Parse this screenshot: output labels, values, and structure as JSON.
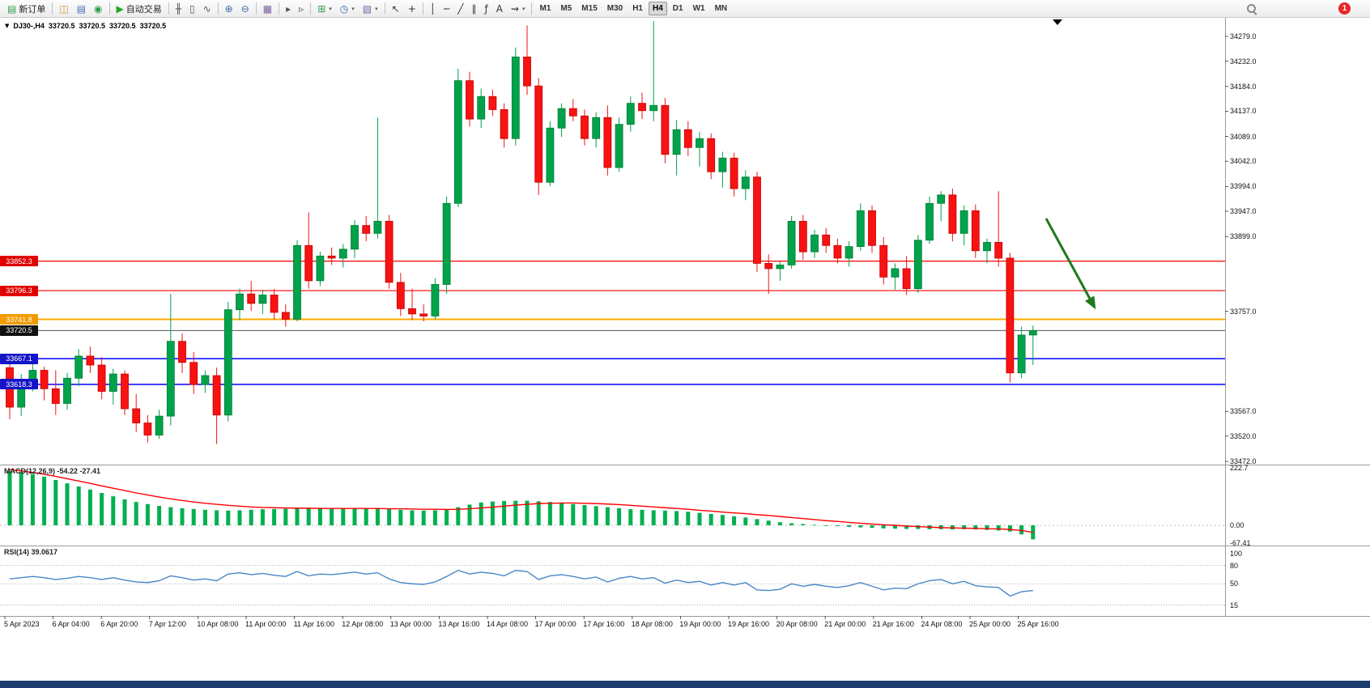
{
  "icons": {
    "caret": "▾",
    "symbol_caret": "▼"
  },
  "toolbar": {
    "groups": [
      {
        "items": [
          {
            "type": "labeled",
            "name": "new-order-button",
            "icon": "new-order-icon",
            "glyph": "▤",
            "color": "#2e9e4f",
            "label": "新订单"
          }
        ]
      },
      {
        "items": [
          {
            "type": "icon",
            "name": "market-watch-icon",
            "glyph": "◫",
            "color": "#c8932b"
          },
          {
            "type": "icon",
            "name": "data-window-icon",
            "glyph": "▤",
            "color": "#4a6fb5"
          },
          {
            "type": "icon",
            "name": "navigator-icon",
            "glyph": "◉",
            "color": "#2e9e4f"
          }
        ]
      },
      {
        "items": [
          {
            "type": "labeled",
            "name": "autotrade-button",
            "icon": "autotrade-play-icon",
            "glyph": "▶",
            "color": "#22aa22",
            "label": "自动交易"
          }
        ]
      },
      {
        "items": [
          {
            "type": "icon",
            "name": "bar-chart-icon",
            "glyph": "╫",
            "color": "#555555"
          },
          {
            "type": "icon",
            "name": "candlestick-chart-icon",
            "glyph": "▯",
            "color": "#555555"
          },
          {
            "type": "icon",
            "name": "line-chart-icon",
            "glyph": "∿",
            "color": "#555555"
          }
        ]
      },
      {
        "items": [
          {
            "type": "icon",
            "name": "zoom-in-icon",
            "glyph": "⊕",
            "color": "#3b6ea5"
          },
          {
            "type": "icon",
            "name": "zoom-out-icon",
            "glyph": "⊖",
            "color": "#3b6ea5"
          }
        ]
      },
      {
        "items": [
          {
            "type": "icon",
            "name": "tile-windows-icon",
            "glyph": "▦",
            "color": "#7a5fa0"
          }
        ]
      },
      {
        "items": [
          {
            "type": "icon",
            "name": "auto-scroll-icon",
            "glyph": "▸",
            "color": "#555555"
          },
          {
            "type": "icon",
            "name": "chart-shift-icon",
            "glyph": "▹",
            "color": "#555555"
          }
        ]
      },
      {
        "items": [
          {
            "type": "dropdown",
            "name": "indicators-menu",
            "glyph": "⊞",
            "color": "#2e9e4f"
          },
          {
            "type": "dropdown",
            "name": "periods-menu",
            "glyph": "◷",
            "color": "#3b6ea5"
          },
          {
            "type": "dropdown",
            "name": "templates-menu",
            "glyph": "▧",
            "color": "#7a5fa0"
          }
        ]
      },
      {
        "items": [
          {
            "type": "icon",
            "name": "cursor-icon",
            "glyph": "↖",
            "color": "#333333"
          },
          {
            "type": "icon",
            "name": "crosshair-icon",
            "glyph": "+",
            "color": "#333333"
          }
        ]
      },
      {
        "items": [
          {
            "type": "icon",
            "name": "vertical-line-icon",
            "glyph": "│",
            "color": "#333333"
          },
          {
            "type": "icon",
            "name": "horizontal-line-icon",
            "glyph": "─",
            "color": "#333333"
          },
          {
            "type": "icon",
            "name": "trendline-icon",
            "glyph": "╱",
            "color": "#333333"
          },
          {
            "type": "icon",
            "name": "equidistant-channel-icon",
            "glyph": "∥",
            "color": "#333333"
          },
          {
            "type": "icon",
            "name": "fibonacci-icon",
            "glyph": "ƒ",
            "color": "#333333"
          },
          {
            "type": "icon",
            "name": "text-tool-icon",
            "glyph": "A",
            "color": "#333333"
          },
          {
            "type": "dropdown",
            "name": "arrows-menu",
            "glyph": "⇝",
            "color": "#333333"
          }
        ]
      }
    ],
    "timeframes": {
      "items": [
        "M1",
        "M5",
        "M15",
        "M30",
        "H1",
        "H4",
        "D1",
        "W1",
        "MN"
      ],
      "active": "H4"
    },
    "notification_count": "1"
  },
  "chart": {
    "symbol_info": {
      "symbol": "DJ30-,H4",
      "open": "33720.5",
      "high": "33720.5",
      "low": "33720.5",
      "close": "33720.5"
    },
    "current_price": 33720.5,
    "price_axis_labels": [
      "34279.0",
      "34232.0",
      "34184.0",
      "34137.0",
      "34089.0",
      "34042.0",
      "33994.0",
      "33947.0",
      "33899.0",
      "33757.0",
      "33567.0",
      "33520.0",
      "33472.0"
    ],
    "price_badges": [
      {
        "value": "33852.3",
        "price": 33852.3,
        "color": "#e00000"
      },
      {
        "value": "33796.3",
        "price": 33796.3,
        "color": "#e00000"
      },
      {
        "value": "33741.8",
        "price": 33741.8,
        "color": "#f29b00"
      },
      {
        "value": "33720.5",
        "price": 33720.5,
        "color": "#111111"
      },
      {
        "value": "33667.1",
        "price": 33667.1,
        "color": "#1414c8"
      },
      {
        "value": "33618.3",
        "price": 33618.3,
        "color": "#1414c8"
      }
    ],
    "hlines": [
      {
        "price": 33852.3,
        "color": "#ff0000",
        "w": 1.2
      },
      {
        "price": 33796.3,
        "color": "#ff0000",
        "w": 1.2
      },
      {
        "price": 33741.8,
        "color": "#ffaa00",
        "w": 2
      },
      {
        "price": 33667.1,
        "color": "#0000ff",
        "w": 1.5
      },
      {
        "price": 33618.3,
        "color": "#0000ff",
        "w": 1.5
      }
    ],
    "time_axis": [
      "5 Apr 2023",
      "6 Apr 04:00",
      "6 Apr 20:00",
      "7 Apr 12:00",
      "10 Apr 08:00",
      "11 Apr 00:00",
      "11 Apr 16:00",
      "12 Apr 08:00",
      "13 Apr 00:00",
      "13 Apr 16:00",
      "14 Apr 08:00",
      "17 Apr 00:00",
      "17 Apr 16:00",
      "18 Apr 08:00",
      "19 Apr 00:00",
      "19 Apr 16:00",
      "20 Apr 08:00",
      "21 Apr 00:00",
      "21 Apr 16:00",
      "24 Apr 08:00",
      "25 Apr 00:00",
      "25 Apr 16:00"
    ]
  },
  "chart_data": {
    "type": "candlestick",
    "symbol": "DJ30-",
    "timeframe": "H4",
    "up_color": "#00a24a",
    "down_color": "#f81212",
    "up_border": "#007a36",
    "down_border": "#c40000",
    "price_range": [
      33472.0,
      34279.0
    ],
    "candles": [
      [
        33650,
        33665,
        33552,
        33575
      ],
      [
        33575,
        33638,
        33558,
        33625
      ],
      [
        33625,
        33658,
        33605,
        33645
      ],
      [
        33645,
        33652,
        33588,
        33610
      ],
      [
        33610,
        33645,
        33560,
        33582
      ],
      [
        33582,
        33640,
        33570,
        33630
      ],
      [
        33630,
        33685,
        33615,
        33672
      ],
      [
        33672,
        33690,
        33640,
        33655
      ],
      [
        33655,
        33670,
        33590,
        33605
      ],
      [
        33605,
        33648,
        33580,
        33638
      ],
      [
        33638,
        33645,
        33560,
        33572
      ],
      [
        33572,
        33600,
        33528,
        33545
      ],
      [
        33545,
        33560,
        33508,
        33522
      ],
      [
        33522,
        33570,
        33515,
        33558
      ],
      [
        33558,
        33790,
        33540,
        33700
      ],
      [
        33700,
        33715,
        33640,
        33660
      ],
      [
        33660,
        33680,
        33600,
        33618
      ],
      [
        33618,
        33645,
        33602,
        33635
      ],
      [
        33635,
        33650,
        33505,
        33560
      ],
      [
        33560,
        33775,
        33548,
        33760
      ],
      [
        33760,
        33800,
        33740,
        33790
      ],
      [
        33790,
        33815,
        33758,
        33772
      ],
      [
        33772,
        33798,
        33752,
        33788
      ],
      [
        33788,
        33800,
        33742,
        33755
      ],
      [
        33755,
        33770,
        33728,
        33742
      ],
      [
        33742,
        33892,
        33738,
        33882
      ],
      [
        33882,
        33945,
        33800,
        33815
      ],
      [
        33815,
        33870,
        33805,
        33862
      ],
      [
        33862,
        33878,
        33845,
        33858
      ],
      [
        33858,
        33885,
        33840,
        33875
      ],
      [
        33875,
        33930,
        33858,
        33920
      ],
      [
        33920,
        33938,
        33890,
        33905
      ],
      [
        33905,
        34125,
        33895,
        33928
      ],
      [
        33928,
        33940,
        33800,
        33812
      ],
      [
        33812,
        33830,
        33748,
        33762
      ],
      [
        33762,
        33800,
        33740,
        33752
      ],
      [
        33752,
        33770,
        33738,
        33748
      ],
      [
        33748,
        33820,
        33742,
        33808
      ],
      [
        33808,
        33975,
        33790,
        33962
      ],
      [
        33962,
        34218,
        33955,
        34195
      ],
      [
        34195,
        34212,
        34108,
        34122
      ],
      [
        34122,
        34180,
        34105,
        34165
      ],
      [
        34165,
        34178,
        34128,
        34140
      ],
      [
        34140,
        34152,
        34068,
        34085
      ],
      [
        34085,
        34258,
        34072,
        34240
      ],
      [
        34240,
        34300,
        34168,
        34185
      ],
      [
        34185,
        34200,
        33978,
        34002
      ],
      [
        34002,
        34118,
        33995,
        34105
      ],
      [
        34105,
        34152,
        34088,
        34142
      ],
      [
        34142,
        34160,
        34118,
        34128
      ],
      [
        34128,
        34140,
        34072,
        34085
      ],
      [
        34085,
        34135,
        34068,
        34125
      ],
      [
        34125,
        34148,
        34015,
        34030
      ],
      [
        34030,
        34125,
        34022,
        34112
      ],
      [
        34112,
        34165,
        34098,
        34152
      ],
      [
        34152,
        34172,
        34122,
        34138
      ],
      [
        34138,
        34308,
        34118,
        34148
      ],
      [
        34148,
        34162,
        34038,
        34055
      ],
      [
        34055,
        34120,
        34015,
        34102
      ],
      [
        34102,
        34118,
        34052,
        34068
      ],
      [
        34068,
        34098,
        34032,
        34085
      ],
      [
        34085,
        34095,
        34008,
        34022
      ],
      [
        34022,
        34060,
        33992,
        34048
      ],
      [
        34048,
        34058,
        33975,
        33990
      ],
      [
        33990,
        34025,
        33968,
        34012
      ],
      [
        34012,
        34022,
        33832,
        33848
      ],
      [
        33848,
        33865,
        33790,
        33838
      ],
      [
        33838,
        33852,
        33815,
        33845
      ],
      [
        33845,
        33938,
        33838,
        33928
      ],
      [
        33928,
        33940,
        33855,
        33870
      ],
      [
        33870,
        33912,
        33858,
        33902
      ],
      [
        33902,
        33915,
        33868,
        33882
      ],
      [
        33882,
        33895,
        33848,
        33858
      ],
      [
        33858,
        33890,
        33842,
        33880
      ],
      [
        33880,
        33962,
        33872,
        33948
      ],
      [
        33948,
        33958,
        33868,
        33882
      ],
      [
        33882,
        33898,
        33808,
        33822
      ],
      [
        33822,
        33848,
        33798,
        33838
      ],
      [
        33838,
        33862,
        33788,
        33800
      ],
      [
        33800,
        33902,
        33792,
        33892
      ],
      [
        33892,
        33975,
        33885,
        33962
      ],
      [
        33962,
        33985,
        33928,
        33978
      ],
      [
        33978,
        33990,
        33890,
        33905
      ],
      [
        33905,
        33958,
        33882,
        33948
      ],
      [
        33948,
        33960,
        33858,
        33872
      ],
      [
        33872,
        33895,
        33848,
        33888
      ],
      [
        33888,
        33985,
        33842,
        33858
      ],
      [
        33858,
        33868,
        33622,
        33640
      ],
      [
        33640,
        33728,
        33630,
        33712
      ],
      [
        33712,
        33730,
        33655,
        33720.5
      ]
    ],
    "macd": {
      "label": "MACD(12,26,9) -54.22 -27.41",
      "params": "12,26,9",
      "main_value": -54.22,
      "signal_value": -27.41,
      "axis": [
        "222.7",
        "0.00",
        "-67.41"
      ],
      "color": "#00b050",
      "signal_color": "#ff0000",
      "hist": [
        210,
        205,
        198,
        188,
        175,
        162,
        150,
        138,
        125,
        112,
        100,
        90,
        82,
        75,
        70,
        66,
        63,
        60,
        58,
        57,
        58,
        60,
        62,
        63,
        64,
        66,
        68,
        68,
        66,
        64,
        64,
        65,
        66,
        64,
        60,
        58,
        57,
        58,
        62,
        70,
        80,
        88,
        92,
        94,
        95,
        95,
        93,
        90,
        86,
        82,
        78,
        74,
        70,
        66,
        62,
        60,
        58,
        57,
        55,
        52,
        48,
        44,
        40,
        35,
        30,
        24,
        18,
        12,
        8,
        5,
        2,
        0,
        -3,
        -6,
        -8,
        -10,
        -12,
        -13,
        -14,
        -14,
        -15,
        -15,
        -16,
        -15,
        -16,
        -18,
        -20,
        -24,
        -35,
        -54.22
      ],
      "signal": [
        215,
        210,
        204,
        197,
        189,
        180,
        171,
        162,
        152,
        143,
        134,
        125,
        117,
        109,
        102,
        96,
        90,
        85,
        81,
        77,
        74,
        71,
        69,
        68,
        67,
        66,
        66,
        65,
        65,
        65,
        65,
        65,
        65,
        64,
        64,
        63,
        62,
        62,
        61,
        62,
        64,
        67,
        70,
        74,
        78,
        81,
        84,
        85,
        86,
        86,
        85,
        84,
        82,
        80,
        77,
        74,
        71,
        68,
        65,
        62,
        58,
        55,
        51,
        48,
        45,
        41,
        38,
        34,
        30,
        26,
        22,
        18,
        15,
        11,
        8,
        5,
        2,
        0,
        -3,
        -5,
        -7,
        -9,
        -10,
        -11,
        -12,
        -13,
        -14,
        -16,
        -20,
        -27.41
      ]
    },
    "rsi": {
      "label": "RSI(14) 39.0617",
      "period": 14,
      "value": 39.0617,
      "color": "#4a86c8",
      "levels": [
        "100",
        "80",
        "50",
        "15"
      ],
      "values": [
        58,
        60,
        62,
        60,
        57,
        59,
        62,
        60,
        57,
        60,
        56,
        53,
        52,
        55,
        63,
        60,
        56,
        58,
        55,
        66,
        68,
        65,
        67,
        64,
        62,
        70,
        63,
        66,
        65,
        67,
        69,
        66,
        68,
        58,
        52,
        50,
        49,
        53,
        62,
        72,
        66,
        69,
        67,
        63,
        72,
        70,
        57,
        63,
        65,
        62,
        58,
        61,
        53,
        59,
        62,
        58,
        60,
        51,
        56,
        52,
        54,
        48,
        52,
        48,
        52,
        40,
        39,
        41,
        50,
        46,
        49,
        46,
        44,
        47,
        52,
        46,
        40,
        43,
        42,
        50,
        55,
        57,
        50,
        54,
        47,
        45,
        44,
        30,
        37,
        39.06
      ]
    }
  },
  "annotations": {
    "arrow": {
      "color": "#1e7a1e",
      "direction": "down-right"
    }
  }
}
